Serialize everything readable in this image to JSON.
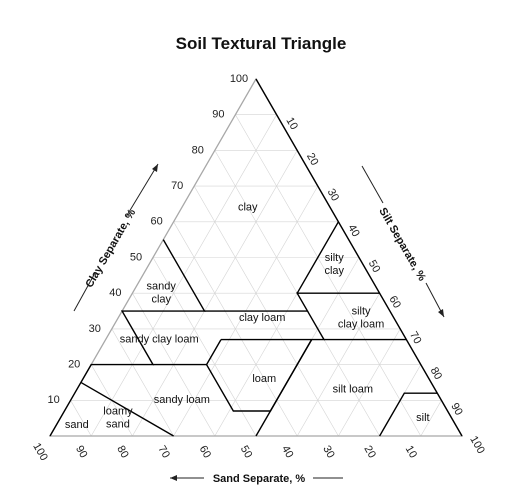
{
  "title": "Soil Textural Triangle",
  "axes": {
    "clay": {
      "label": "Clay Separate, %",
      "ticks": [
        10,
        20,
        30,
        40,
        50,
        60,
        70,
        80,
        90,
        100
      ]
    },
    "silt": {
      "label": "Silt Separate, %",
      "ticks": [
        10,
        20,
        30,
        40,
        50,
        60,
        70,
        80,
        90,
        100
      ]
    },
    "sand": {
      "label": "Sand Separate, %",
      "ticks": [
        100,
        90,
        80,
        70,
        60,
        50,
        40,
        30,
        20,
        10
      ]
    }
  },
  "regions": [
    {
      "id": "clay",
      "lines": [
        "clay"
      ],
      "sand": 20,
      "clay": 64
    },
    {
      "id": "silty-clay",
      "lines": [
        "silty",
        "clay"
      ],
      "sand": 7,
      "clay": 48
    },
    {
      "id": "sandy-clay",
      "lines": [
        "sandy",
        "clay"
      ],
      "sand": 53,
      "clay": 40
    },
    {
      "id": "silty-clay-loam",
      "lines": [
        "silty",
        "clay loam"
      ],
      "sand": 8,
      "clay": 33
    },
    {
      "id": "clay-loam",
      "lines": [
        "clay loam"
      ],
      "sand": 32,
      "clay": 33
    },
    {
      "id": "sandy-clay-loam",
      "lines": [
        "sandy clay loam"
      ],
      "sand": 60,
      "clay": 27
    },
    {
      "id": "loam",
      "lines": [
        "loam"
      ],
      "sand": 40,
      "clay": 16
    },
    {
      "id": "silt-loam",
      "lines": [
        "silt loam"
      ],
      "sand": 20,
      "clay": 13
    },
    {
      "id": "sandy-loam",
      "lines": [
        "sandy loam"
      ],
      "sand": 63,
      "clay": 10
    },
    {
      "id": "silt",
      "lines": [
        "silt"
      ],
      "sand": 7,
      "clay": 5
    },
    {
      "id": "loamy-sand",
      "lines": [
        "loamy",
        "sand"
      ],
      "sand": 81,
      "clay": 5
    },
    {
      "id": "sand",
      "lines": [
        "sand"
      ],
      "sand": 92,
      "clay": 3
    }
  ],
  "boundaries": [
    [
      [
        45,
        55
      ],
      [
        45,
        35
      ],
      [
        65,
        35
      ],
      [
        65,
        20
      ],
      [
        80,
        20
      ],
      [
        85,
        15
      ],
      [
        90,
        10
      ],
      [
        100,
        0
      ]
    ],
    [
      [
        70,
        0
      ],
      [
        85,
        15
      ]
    ],
    [
      [
        45,
        35
      ],
      [
        20,
        35
      ],
      [
        20,
        40
      ],
      [
        0,
        40
      ]
    ],
    [
      [
        20,
        40
      ],
      [
        0,
        60
      ]
    ],
    [
      [
        20,
        35
      ],
      [
        20,
        27
      ],
      [
        45,
        27
      ]
    ],
    [
      [
        20,
        27
      ],
      [
        0,
        27
      ]
    ],
    [
      [
        45,
        27
      ],
      [
        52,
        20
      ],
      [
        52,
        7
      ],
      [
        43,
        7
      ],
      [
        23,
        27
      ]
    ],
    [
      [
        52,
        20
      ],
      [
        65,
        20
      ]
    ],
    [
      [
        50,
        0
      ],
      [
        23,
        27
      ]
    ],
    [
      [
        20,
        0
      ],
      [
        8,
        12
      ],
      [
        0,
        12
      ]
    ],
    [
      [
        0,
        100
      ],
      [
        0,
        0
      ]
    ]
  ],
  "colors": {
    "line": "#000000",
    "grid": "#d4d4d4",
    "frame": "#a8a8a8"
  }
}
